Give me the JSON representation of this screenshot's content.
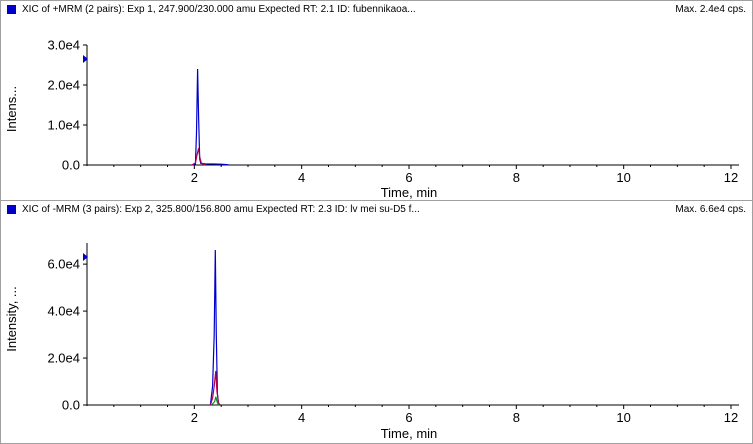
{
  "panels": [
    {
      "title": "XIC of +MRM (2 pairs): Exp 1, 247.900/230.000 amu Expected RT: 2.1 ID: fubennikaoa...",
      "max": "Max. 2.4e4 cps.",
      "ylabel": "Intens...",
      "xlabel": "Time, min",
      "y_ticks": [
        {
          "v": 0,
          "label": "0.0"
        },
        {
          "v": 10000,
          "label": "1.0e4"
        },
        {
          "v": 20000,
          "label": "2.0e4"
        },
        {
          "v": 30000,
          "label": "3.0e4"
        }
      ],
      "x_ticks": [
        {
          "v": 2,
          "label": "2"
        },
        {
          "v": 4,
          "label": "4"
        },
        {
          "v": 6,
          "label": "6"
        },
        {
          "v": 8,
          "label": "8"
        },
        {
          "v": 10,
          "label": "10"
        },
        {
          "v": 12,
          "label": "12"
        }
      ]
    },
    {
      "title": "XIC of -MRM (3 pairs): Exp 2, 325.800/156.800 amu Expected RT: 2.3 ID: lv mei su-D5 f...",
      "max": "Max. 6.6e4 cps.",
      "ylabel": "Intensity, ...",
      "xlabel": "Time, min",
      "y_ticks": [
        {
          "v": 0,
          "label": "0.0"
        },
        {
          "v": 20000,
          "label": "2.0e4"
        },
        {
          "v": 40000,
          "label": "4.0e4"
        },
        {
          "v": 60000,
          "label": "6.0e4"
        }
      ],
      "x_ticks": [
        {
          "v": 2,
          "label": "2"
        },
        {
          "v": 4,
          "label": "4"
        },
        {
          "v": 6,
          "label": "6"
        },
        {
          "v": 8,
          "label": "8"
        },
        {
          "v": 10,
          "label": "10"
        },
        {
          "v": 12,
          "label": "12"
        }
      ]
    }
  ],
  "chart_data": [
    {
      "type": "line",
      "title": "XIC of +MRM (2 pairs): Exp 1, 247.900/230.000 amu Expected RT: 2.1 ID: fubennikaoa...",
      "xlabel": "Time, min",
      "ylabel": "Intens...",
      "xlim": [
        0,
        12
      ],
      "ylim": [
        0,
        30000
      ],
      "grid": false,
      "series": [
        {
          "color": "#0000cc",
          "x": [
            1.95,
            2.02,
            2.04,
            2.06,
            2.08,
            2.1,
            2.12,
            2.2,
            2.35,
            2.5,
            2.6,
            2.65
          ],
          "y": [
            0,
            200,
            8000,
            24000,
            12000,
            1500,
            400,
            300,
            250,
            200,
            100,
            0
          ]
        },
        {
          "color": "#b0004a",
          "x": [
            1.95,
            2.02,
            2.05,
            2.08,
            2.1,
            2.13,
            2.2
          ],
          "y": [
            0,
            500,
            2500,
            4200,
            2000,
            500,
            0
          ]
        }
      ]
    },
    {
      "type": "line",
      "title": "XIC of -MRM (3 pairs): Exp 2, 325.800/156.800 amu Expected RT: 2.3 ID: lv mei su-D5 f...",
      "xlabel": "Time, min",
      "ylabel": "Intensity, ...",
      "xlim": [
        0,
        12
      ],
      "ylim": [
        0,
        69000
      ],
      "grid": false,
      "series": [
        {
          "color": "#0000cc",
          "x": [
            2.3,
            2.34,
            2.37,
            2.39,
            2.41,
            2.43,
            2.45,
            2.48
          ],
          "y": [
            0,
            8000,
            30000,
            66000,
            30000,
            5000,
            500,
            0
          ]
        },
        {
          "color": "#b0004a",
          "x": [
            2.3,
            2.34,
            2.37,
            2.4,
            2.42,
            2.45,
            2.48
          ],
          "y": [
            0,
            3000,
            8000,
            14500,
            6000,
            1000,
            0
          ]
        },
        {
          "color": "#009030",
          "x": [
            2.32,
            2.38,
            2.4,
            2.43,
            2.46
          ],
          "y": [
            0,
            1500,
            3500,
            1000,
            0
          ]
        }
      ]
    }
  ]
}
